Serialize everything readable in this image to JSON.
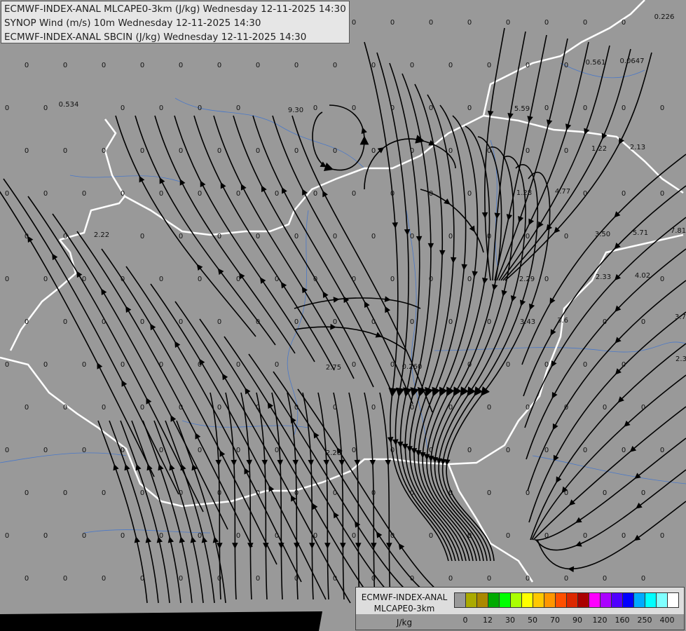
{
  "header": {
    "lines": [
      "ECMWF-INDEX-ANAL MLCAPE0-3km (J/kg) Wednesday 12-11-2025 14:30",
      "SYNOP Wind (m/s) 10m Wednesday 12-11-2025 14:30",
      "ECMWF-INDEX-ANAL SBCIN (J/kg) Wednesday 12-11-2025 14:30"
    ]
  },
  "map": {
    "background_color": "#999999",
    "border_color": "#ffffff",
    "river_color": "#4a78c8",
    "streamline_color": "#000000",
    "zero_value": "0",
    "station_values": [
      "0.226",
      "0.561",
      "0.0647",
      "0.534",
      "9.30",
      "5.59",
      "1.22",
      "2.13",
      "1.28",
      "4.77",
      "2.22",
      "3.50",
      "5.71",
      "7.81",
      "2.29",
      "2.33",
      "4.02",
      "3.43",
      "3.6",
      "3.7",
      "2.75",
      "0.260",
      "2.3",
      "2.28"
    ]
  },
  "legend": {
    "title_lines": [
      "ECMWF-INDEX-ANAL",
      "MLCAPE0-3km",
      "J/kg"
    ],
    "colors": [
      "#999999",
      "#aaaa00",
      "#aa8800",
      "#00aa00",
      "#00ff00",
      "#aaff00",
      "#ffff00",
      "#ffc800",
      "#ff9600",
      "#ff5000",
      "#dc2800",
      "#aa0000",
      "#ff00ff",
      "#aa00ff",
      "#5000ff",
      "#0000ff",
      "#00aaff",
      "#00ffff",
      "#80ffff",
      "#ffffff"
    ],
    "ticks": [
      "0",
      "12",
      "30",
      "50",
      "70",
      "90",
      "120",
      "160",
      "250",
      "400"
    ]
  }
}
